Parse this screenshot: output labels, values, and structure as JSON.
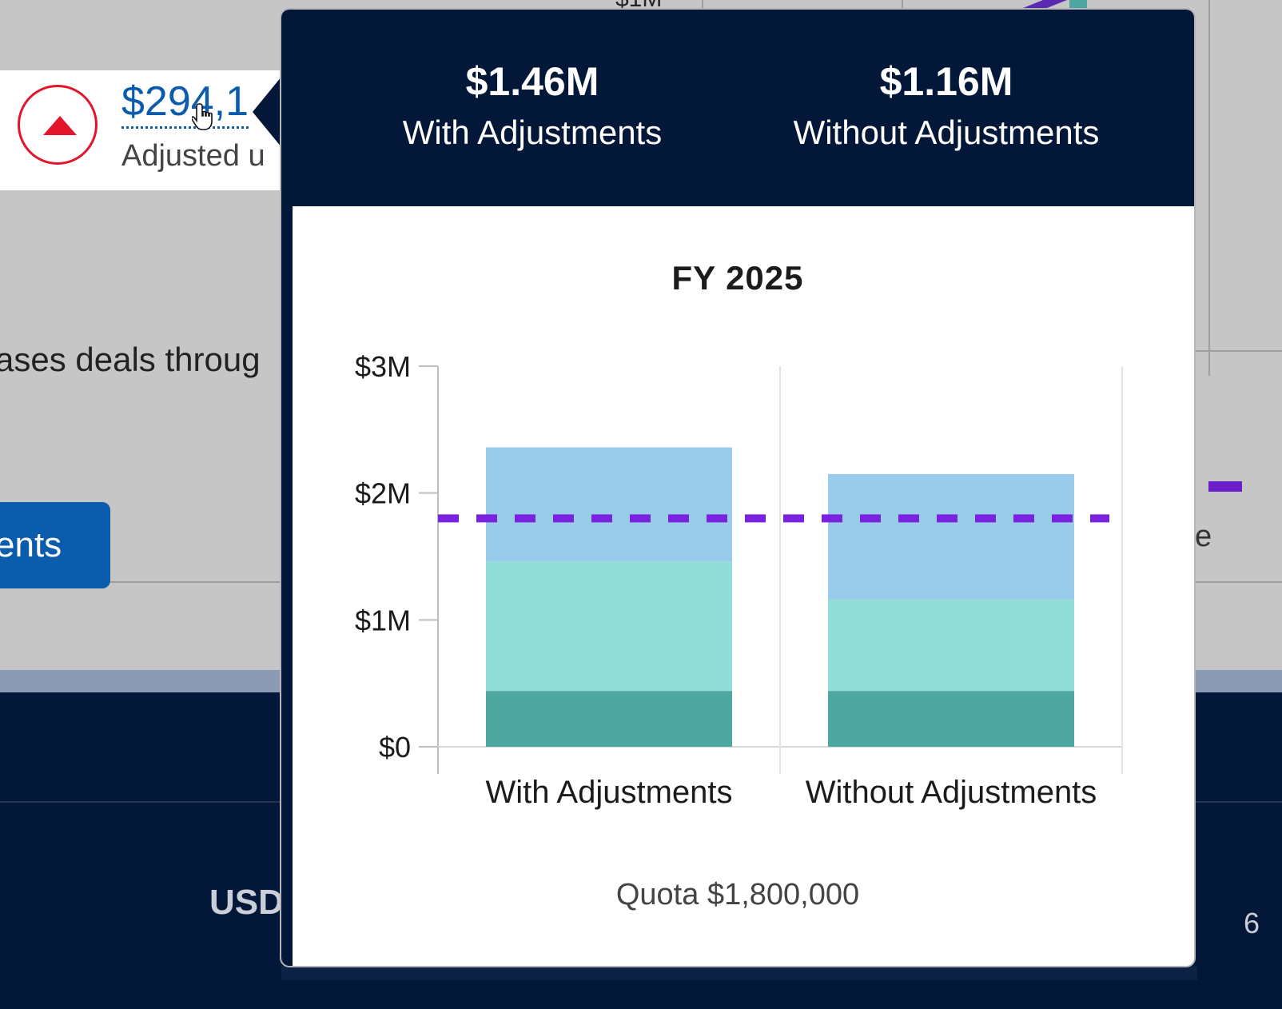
{
  "background": {
    "top_fragment": "$1M",
    "amount_link": "$294,1",
    "adjusted_label": "Adjusted u",
    "description_fragment": "ases deals throug",
    "button_fragment": "ents",
    "right_fragment": "e",
    "currency": "USD",
    "right_digit": "6"
  },
  "popover": {
    "stats": [
      {
        "value": "$1.46M",
        "label": "With Adjustments"
      },
      {
        "value": "$1.16M",
        "label": "Without Adjustments"
      }
    ],
    "quota_label": "Quota",
    "quota_value": "$1,800,000"
  },
  "chart_data": {
    "type": "bar",
    "stacked": true,
    "title": "FY 2025",
    "categories": [
      "With Adjustments",
      "Without Adjustments"
    ],
    "series": [
      {
        "values": [
          440000,
          440000
        ],
        "color": "#4ea7a0"
      },
      {
        "values": [
          1020000,
          720000
        ],
        "color": "#93ddd8"
      },
      {
        "values": [
          900000,
          990000
        ],
        "color": "#99cbea"
      }
    ],
    "reference_line": {
      "value": 1800000,
      "color": "#7a22e0",
      "style": "dashed"
    },
    "y_ticks": [
      "$0",
      "$1M",
      "$2M",
      "$3M"
    ],
    "ylim": [
      0,
      3000000
    ],
    "grid": true,
    "legend": "none"
  },
  "colors": {
    "navy": "#031838",
    "link_blue": "#0b5cad",
    "alert_red": "#e3152b",
    "quota_purple": "#7a22e0"
  }
}
